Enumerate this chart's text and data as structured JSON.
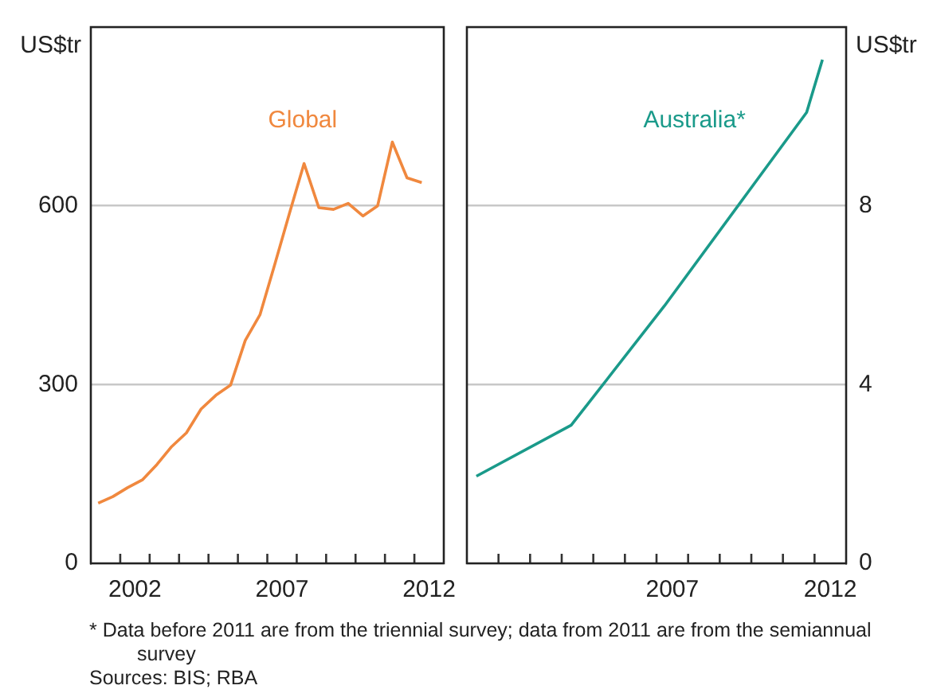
{
  "chart_data": [
    {
      "type": "line",
      "ylabel": "US$tr",
      "xlim": [
        2001,
        2013
      ],
      "ylim": [
        0,
        900
      ],
      "xticks": [
        {
          "value": 2002,
          "label": null
        },
        {
          "value": 2002.5,
          "label": "2002"
        },
        {
          "value": 2003,
          "label": null
        },
        {
          "value": 2004,
          "label": null
        },
        {
          "value": 2005,
          "label": null
        },
        {
          "value": 2006,
          "label": null
        },
        {
          "value": 2007,
          "label": null
        },
        {
          "value": 2007.5,
          "label": "2007"
        },
        {
          "value": 2008,
          "label": null
        },
        {
          "value": 2009,
          "label": null
        },
        {
          "value": 2010,
          "label": null
        },
        {
          "value": 2011,
          "label": null
        },
        {
          "value": 2012,
          "label": null
        },
        {
          "value": 2012.5,
          "label": "2012"
        }
      ],
      "yticks": [
        0,
        300,
        600,
        {
          "value": 900,
          "label": null
        }
      ],
      "grid": "y",
      "marker": "none",
      "line_style": "solid",
      "series": [
        {
          "name": "Global",
          "color": "#f0883e",
          "x": [
            2001.25,
            2001.75,
            2002.25,
            2002.75,
            2003.25,
            2003.75,
            2004.25,
            2004.75,
            2005.25,
            2005.75,
            2006.25,
            2006.75,
            2007.25,
            2007.75,
            2008.25,
            2008.75,
            2009.25,
            2009.75,
            2010.25,
            2010.75,
            2011.25,
            2011.75,
            2012.25
          ],
          "values": [
            101,
            112,
            127,
            140,
            166,
            196,
            219,
            259,
            282,
            299,
            374,
            417,
            501,
            587,
            671,
            597,
            594,
            604,
            583,
            600,
            707,
            647,
            639
          ]
        }
      ],
      "annotations": [
        "* Data before 2011 are from the triennial survey; data from 2011 are from the semiannual survey",
        "Sources: BIS; RBA"
      ]
    },
    {
      "type": "line",
      "ylabel": "US$tr",
      "xlim": [
        2001,
        2013
      ],
      "ylim": [
        0,
        12
      ],
      "xticks": [
        {
          "value": 2002,
          "label": null
        },
        {
          "value": 2003,
          "label": null
        },
        {
          "value": 2004,
          "label": null
        },
        {
          "value": 2005,
          "label": null
        },
        {
          "value": 2006,
          "label": null
        },
        {
          "value": 2007,
          "label": null
        },
        {
          "value": 2007.5,
          "label": "2007"
        },
        {
          "value": 2008,
          "label": null
        },
        {
          "value": 2009,
          "label": null
        },
        {
          "value": 2010,
          "label": null
        },
        {
          "value": 2011,
          "label": null
        },
        {
          "value": 2012,
          "label": null
        },
        {
          "value": 2012.5,
          "label": "2012"
        }
      ],
      "yticks": [
        0,
        4,
        8,
        {
          "value": 12,
          "label": null
        }
      ],
      "grid": "y",
      "marker": "none",
      "line_style": "solid",
      "series": [
        {
          "name": "Australia*",
          "color": "#1a9a8a",
          "x": [
            2001.3,
            2004.3,
            2007.25,
            2009.9,
            2011.75,
            2012.25
          ],
          "values": [
            1.95,
            3.09,
            5.76,
            8.31,
            10.09,
            11.27
          ]
        }
      ]
    }
  ]
}
